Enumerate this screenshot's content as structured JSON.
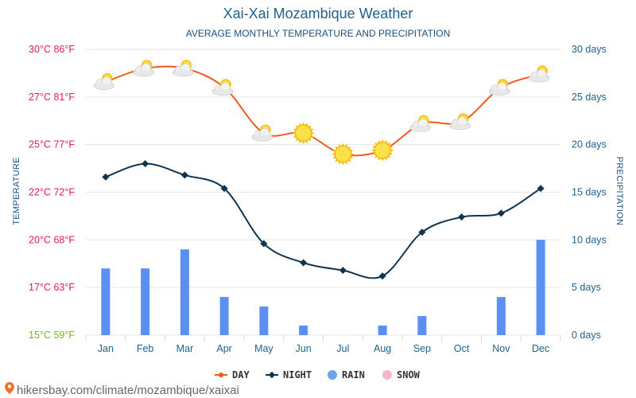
{
  "chart_data": {
    "type": "line",
    "title": "Xai-Xai Mozambique Weather",
    "subtitle": "AVERAGE MONTHLY TEMPERATURE AND PRECIPITATION",
    "ylabel_left": "TEMPERATURE",
    "ylabel_right": "PRECIPITATION",
    "categories": [
      "Jan",
      "Feb",
      "Mar",
      "Apr",
      "May",
      "Jun",
      "Jul",
      "Aug",
      "Sep",
      "Oct",
      "Nov",
      "Dec"
    ],
    "left_ticks": [
      {
        "value": 15,
        "label": "15°C 59°F",
        "color": "#7ab317"
      },
      {
        "value": 17.5,
        "label": "17°C 63°F",
        "color": "#e0195a"
      },
      {
        "value": 20,
        "label": "20°C 68°F",
        "color": "#e0195a"
      },
      {
        "value": 22.5,
        "label": "22°C 72°F",
        "color": "#e0195a"
      },
      {
        "value": 25,
        "label": "25°C 77°F",
        "color": "#e0195a"
      },
      {
        "value": 27.5,
        "label": "27°C 81°F",
        "color": "#e0195a"
      },
      {
        "value": 30,
        "label": "30°C 86°F",
        "color": "#e0195a"
      }
    ],
    "right_ticks": [
      {
        "value": 0,
        "label": "0 days"
      },
      {
        "value": 5,
        "label": "5 days"
      },
      {
        "value": 10,
        "label": "10 days"
      },
      {
        "value": 15,
        "label": "15 days"
      },
      {
        "value": 20,
        "label": "20 days"
      },
      {
        "value": 25,
        "label": "25 days"
      },
      {
        "value": 30,
        "label": "30 days"
      }
    ],
    "ylim_left": [
      15,
      30
    ],
    "ylim_right": [
      0,
      30
    ],
    "series": [
      {
        "name": "DAY",
        "axis": "left",
        "color": "#f05a1a",
        "values": [
          28.3,
          29.0,
          29.0,
          28.0,
          25.6,
          25.6,
          24.5,
          24.7,
          26.1,
          26.2,
          28.0,
          28.7
        ]
      },
      {
        "name": "NIGHT",
        "axis": "left",
        "color": "#12354d",
        "values": [
          23.3,
          24.0,
          23.4,
          22.7,
          19.8,
          18.8,
          18.4,
          18.1,
          20.4,
          21.2,
          21.4,
          22.7
        ]
      },
      {
        "name": "RAIN",
        "axis": "right",
        "color": "#5b8ff0",
        "values": [
          7,
          7,
          9,
          4,
          3,
          1,
          0,
          1,
          2,
          0,
          4,
          10
        ]
      }
    ],
    "weather_icons": [
      "partly-cloudy",
      "partly-cloudy",
      "partly-cloudy",
      "partly-cloudy",
      "partly-cloudy",
      "sunny",
      "sunny",
      "sunny",
      "partly-cloudy",
      "partly-cloudy",
      "partly-cloudy",
      "partly-cloudy"
    ],
    "legend": [
      {
        "label": "DAY",
        "marker": "line-dot",
        "color": "#f05a1a"
      },
      {
        "label": "NIGHT",
        "marker": "line-diamond",
        "color": "#12354d"
      },
      {
        "label": "RAIN",
        "marker": "circle",
        "color": "#6fa3e8"
      },
      {
        "label": "SNOW",
        "marker": "circle",
        "color": "#f7b6c8"
      }
    ],
    "legend_position": "bottom-center",
    "grid": true,
    "source": "hikersbay.com/climate/mozambique/xaixai"
  }
}
